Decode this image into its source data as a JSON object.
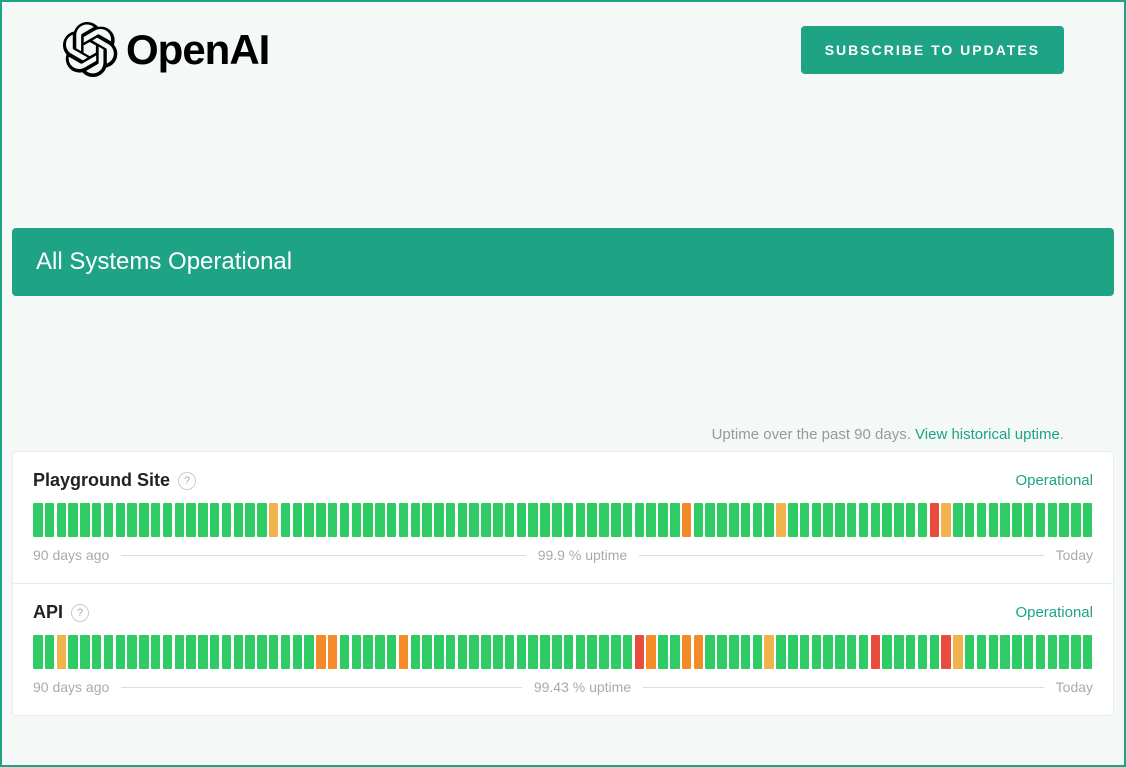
{
  "header": {
    "brand_name": "OpenAI",
    "subscribe_label": "SUBSCRIBE TO UPDATES"
  },
  "status_banner": {
    "text": "All Systems Operational",
    "bg_color": "#1fa385",
    "text_color": "#ffffff"
  },
  "uptime_header": {
    "prefix": "Uptime over the past 90 days. ",
    "link_text": "View historical uptime",
    "suffix": "."
  },
  "colors": {
    "operational": "#1fa385",
    "status_green": "#2fcc66",
    "status_orange": "#f1b44c",
    "status_orange2": "#f48b29",
    "status_red": "#e74c3c",
    "muted": "#aaaaaa"
  },
  "bar_style": {
    "height": 34,
    "gap": 2.3,
    "count": 90
  },
  "components": [
    {
      "name": "Playground Site",
      "status_label": "Operational",
      "uptime_text": "99.9 % uptime",
      "left_label": "90 days ago",
      "right_label": "Today",
      "bars": [
        "g",
        "g",
        "g",
        "g",
        "g",
        "g",
        "g",
        "g",
        "g",
        "g",
        "g",
        "g",
        "g",
        "g",
        "g",
        "g",
        "g",
        "g",
        "g",
        "g",
        "o",
        "g",
        "g",
        "g",
        "g",
        "g",
        "g",
        "g",
        "g",
        "g",
        "g",
        "g",
        "g",
        "g",
        "g",
        "g",
        "g",
        "g",
        "g",
        "g",
        "g",
        "g",
        "g",
        "g",
        "g",
        "g",
        "g",
        "g",
        "g",
        "g",
        "g",
        "g",
        "g",
        "g",
        "g",
        "o2",
        "g",
        "g",
        "g",
        "g",
        "g",
        "g",
        "g",
        "o",
        "g",
        "g",
        "g",
        "g",
        "g",
        "g",
        "g",
        "g",
        "g",
        "g",
        "g",
        "g",
        "r",
        "o",
        "g",
        "g",
        "g",
        "g",
        "g",
        "g",
        "g",
        "g",
        "g",
        "g",
        "g",
        "g"
      ]
    },
    {
      "name": "API",
      "status_label": "Operational",
      "uptime_text": "99.43 % uptime",
      "left_label": "90 days ago",
      "right_label": "Today",
      "bars": [
        "g",
        "g",
        "o",
        "g",
        "g",
        "g",
        "g",
        "g",
        "g",
        "g",
        "g",
        "g",
        "g",
        "g",
        "g",
        "g",
        "g",
        "g",
        "g",
        "g",
        "g",
        "g",
        "g",
        "g",
        "o2",
        "o2",
        "g",
        "g",
        "g",
        "g",
        "g",
        "o2",
        "g",
        "g",
        "g",
        "g",
        "g",
        "g",
        "g",
        "g",
        "g",
        "g",
        "g",
        "g",
        "g",
        "g",
        "g",
        "g",
        "g",
        "g",
        "g",
        "r",
        "o2",
        "g",
        "g",
        "o2",
        "o2",
        "g",
        "g",
        "g",
        "g",
        "g",
        "o",
        "g",
        "g",
        "g",
        "g",
        "g",
        "g",
        "g",
        "g",
        "r",
        "g",
        "g",
        "g",
        "g",
        "g",
        "r",
        "o",
        "g",
        "g",
        "g",
        "g",
        "g",
        "g",
        "g",
        "g",
        "g",
        "g",
        "g"
      ]
    }
  ],
  "bar_color_map": {
    "g": "#2fcc66",
    "o": "#f1b44c",
    "o2": "#f48b29",
    "r": "#e74c3c"
  }
}
